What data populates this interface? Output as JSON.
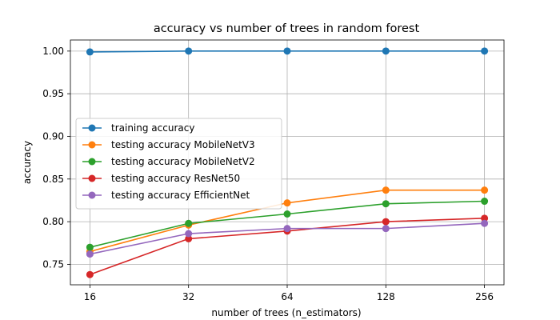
{
  "chart_data": {
    "type": "line",
    "title": "accuracy vs number of trees in random forest",
    "xlabel": "number of trees (n_estimators)",
    "ylabel": "accuracy",
    "x": [
      16,
      32,
      64,
      128,
      256
    ],
    "x_tick_labels": [
      "16",
      "32",
      "64",
      "128",
      "256"
    ],
    "x_scale": "log2",
    "y_ticks": [
      0.75,
      0.8,
      0.85,
      0.9,
      0.95,
      1.0
    ],
    "y_tick_labels": [
      "0.75",
      "0.80",
      "0.85",
      "0.90",
      "0.95",
      "1.00"
    ],
    "ylim": [
      0.726,
      1.013
    ],
    "grid": true,
    "legend_placement": "center-left",
    "series": [
      {
        "name": "training accuracy",
        "color": "#1f77b4",
        "values": [
          0.999,
          1.0,
          1.0,
          1.0,
          1.0
        ]
      },
      {
        "name": "testing accuracy MobileNetV3",
        "color": "#ff7f0e",
        "values": [
          0.765,
          0.796,
          0.822,
          0.837,
          0.837
        ]
      },
      {
        "name": "testing accuracy MobileNetV2",
        "color": "#2ca02c",
        "values": [
          0.77,
          0.798,
          0.809,
          0.821,
          0.824
        ]
      },
      {
        "name": "testing accuracy ResNet50",
        "color": "#d62728",
        "values": [
          0.738,
          0.78,
          0.789,
          0.8,
          0.804
        ]
      },
      {
        "name": "testing accuracy EfficientNet",
        "color": "#9467bd",
        "values": [
          0.762,
          0.786,
          0.792,
          0.792,
          0.798
        ]
      }
    ]
  }
}
